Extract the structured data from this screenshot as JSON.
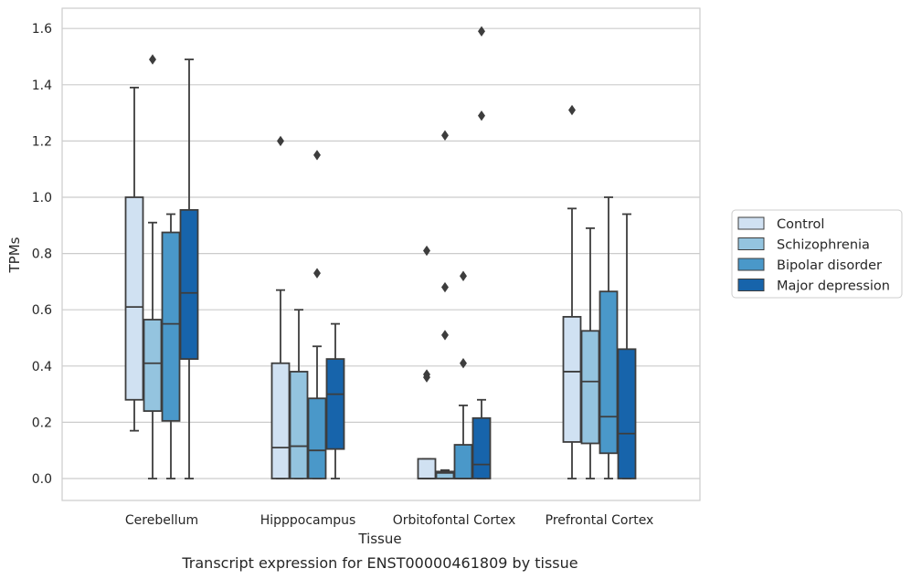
{
  "chart_data": {
    "type": "box",
    "xlabel": "Tissue",
    "ylabel": "TPMs",
    "caption": "Transcript expression for ENST00000461809 by tissue",
    "ylim": [
      -0.08,
      1.67
    ],
    "yticks": [
      "0.0",
      "0.2",
      "0.4",
      "0.6",
      "0.8",
      "1.0",
      "1.2",
      "1.4",
      "1.6"
    ],
    "grid": true,
    "legend_position": "right",
    "categories": [
      "Cerebellum",
      "Hipppocampus",
      "Orbitofontal Cortex",
      "Prefrontal Cortex"
    ],
    "series": [
      {
        "name": "Control",
        "color": "#d0e1f2",
        "boxes": [
          {
            "min": 0.17,
            "q1": 0.28,
            "median": 0.61,
            "q3": 1.0,
            "max": 1.39,
            "outliers": []
          },
          {
            "min": 0.0,
            "q1": 0.0,
            "median": 0.11,
            "q3": 0.41,
            "max": 0.67,
            "outliers": [
              1.2
            ]
          },
          {
            "min": 0.0,
            "q1": 0.0,
            "median": 0.0,
            "q3": 0.07,
            "max": 0.07,
            "outliers": [
              0.36,
              0.37,
              0.81
            ]
          },
          {
            "min": 0.0,
            "q1": 0.13,
            "median": 0.38,
            "q3": 0.575,
            "max": 0.96,
            "outliers": [
              1.31
            ]
          }
        ]
      },
      {
        "name": "Schizophrenia",
        "color": "#94c4df",
        "boxes": [
          {
            "min": 0.0,
            "q1": 0.24,
            "median": 0.41,
            "q3": 0.565,
            "max": 0.91,
            "outliers": [
              1.49
            ]
          },
          {
            "min": 0.0,
            "q1": 0.0,
            "median": 0.115,
            "q3": 0.38,
            "max": 0.6,
            "outliers": []
          },
          {
            "min": 0.0,
            "q1": 0.0,
            "median": 0.02,
            "q3": 0.025,
            "max": 0.03,
            "outliers": [
              0.51,
              0.68,
              1.22
            ]
          },
          {
            "min": 0.0,
            "q1": 0.125,
            "median": 0.345,
            "q3": 0.525,
            "max": 0.89,
            "outliers": []
          }
        ]
      },
      {
        "name": "Bipolar disorder",
        "color": "#4a98c9",
        "boxes": [
          {
            "min": 0.0,
            "q1": 0.205,
            "median": 0.55,
            "q3": 0.875,
            "max": 0.94,
            "outliers": []
          },
          {
            "min": 0.0,
            "q1": 0.0,
            "median": 0.1,
            "q3": 0.285,
            "max": 0.47,
            "outliers": [
              0.73,
              1.15
            ]
          },
          {
            "min": 0.0,
            "q1": 0.0,
            "median": 0.0,
            "q3": 0.12,
            "max": 0.26,
            "outliers": [
              0.41,
              0.72
            ]
          },
          {
            "min": 0.0,
            "q1": 0.09,
            "median": 0.22,
            "q3": 0.665,
            "max": 1.0,
            "outliers": []
          }
        ]
      },
      {
        "name": "Major depression",
        "color": "#1764ab",
        "boxes": [
          {
            "min": 0.0,
            "q1": 0.425,
            "median": 0.66,
            "q3": 0.955,
            "max": 1.49,
            "outliers": []
          },
          {
            "min": 0.0,
            "q1": 0.105,
            "median": 0.3,
            "q3": 0.425,
            "max": 0.55,
            "outliers": []
          },
          {
            "min": 0.0,
            "q1": 0.0,
            "median": 0.05,
            "q3": 0.215,
            "max": 0.28,
            "outliers": [
              1.29,
              1.59
            ]
          },
          {
            "min": 0.0,
            "q1": 0.0,
            "median": 0.16,
            "q3": 0.46,
            "max": 0.94,
            "outliers": []
          }
        ]
      }
    ]
  }
}
